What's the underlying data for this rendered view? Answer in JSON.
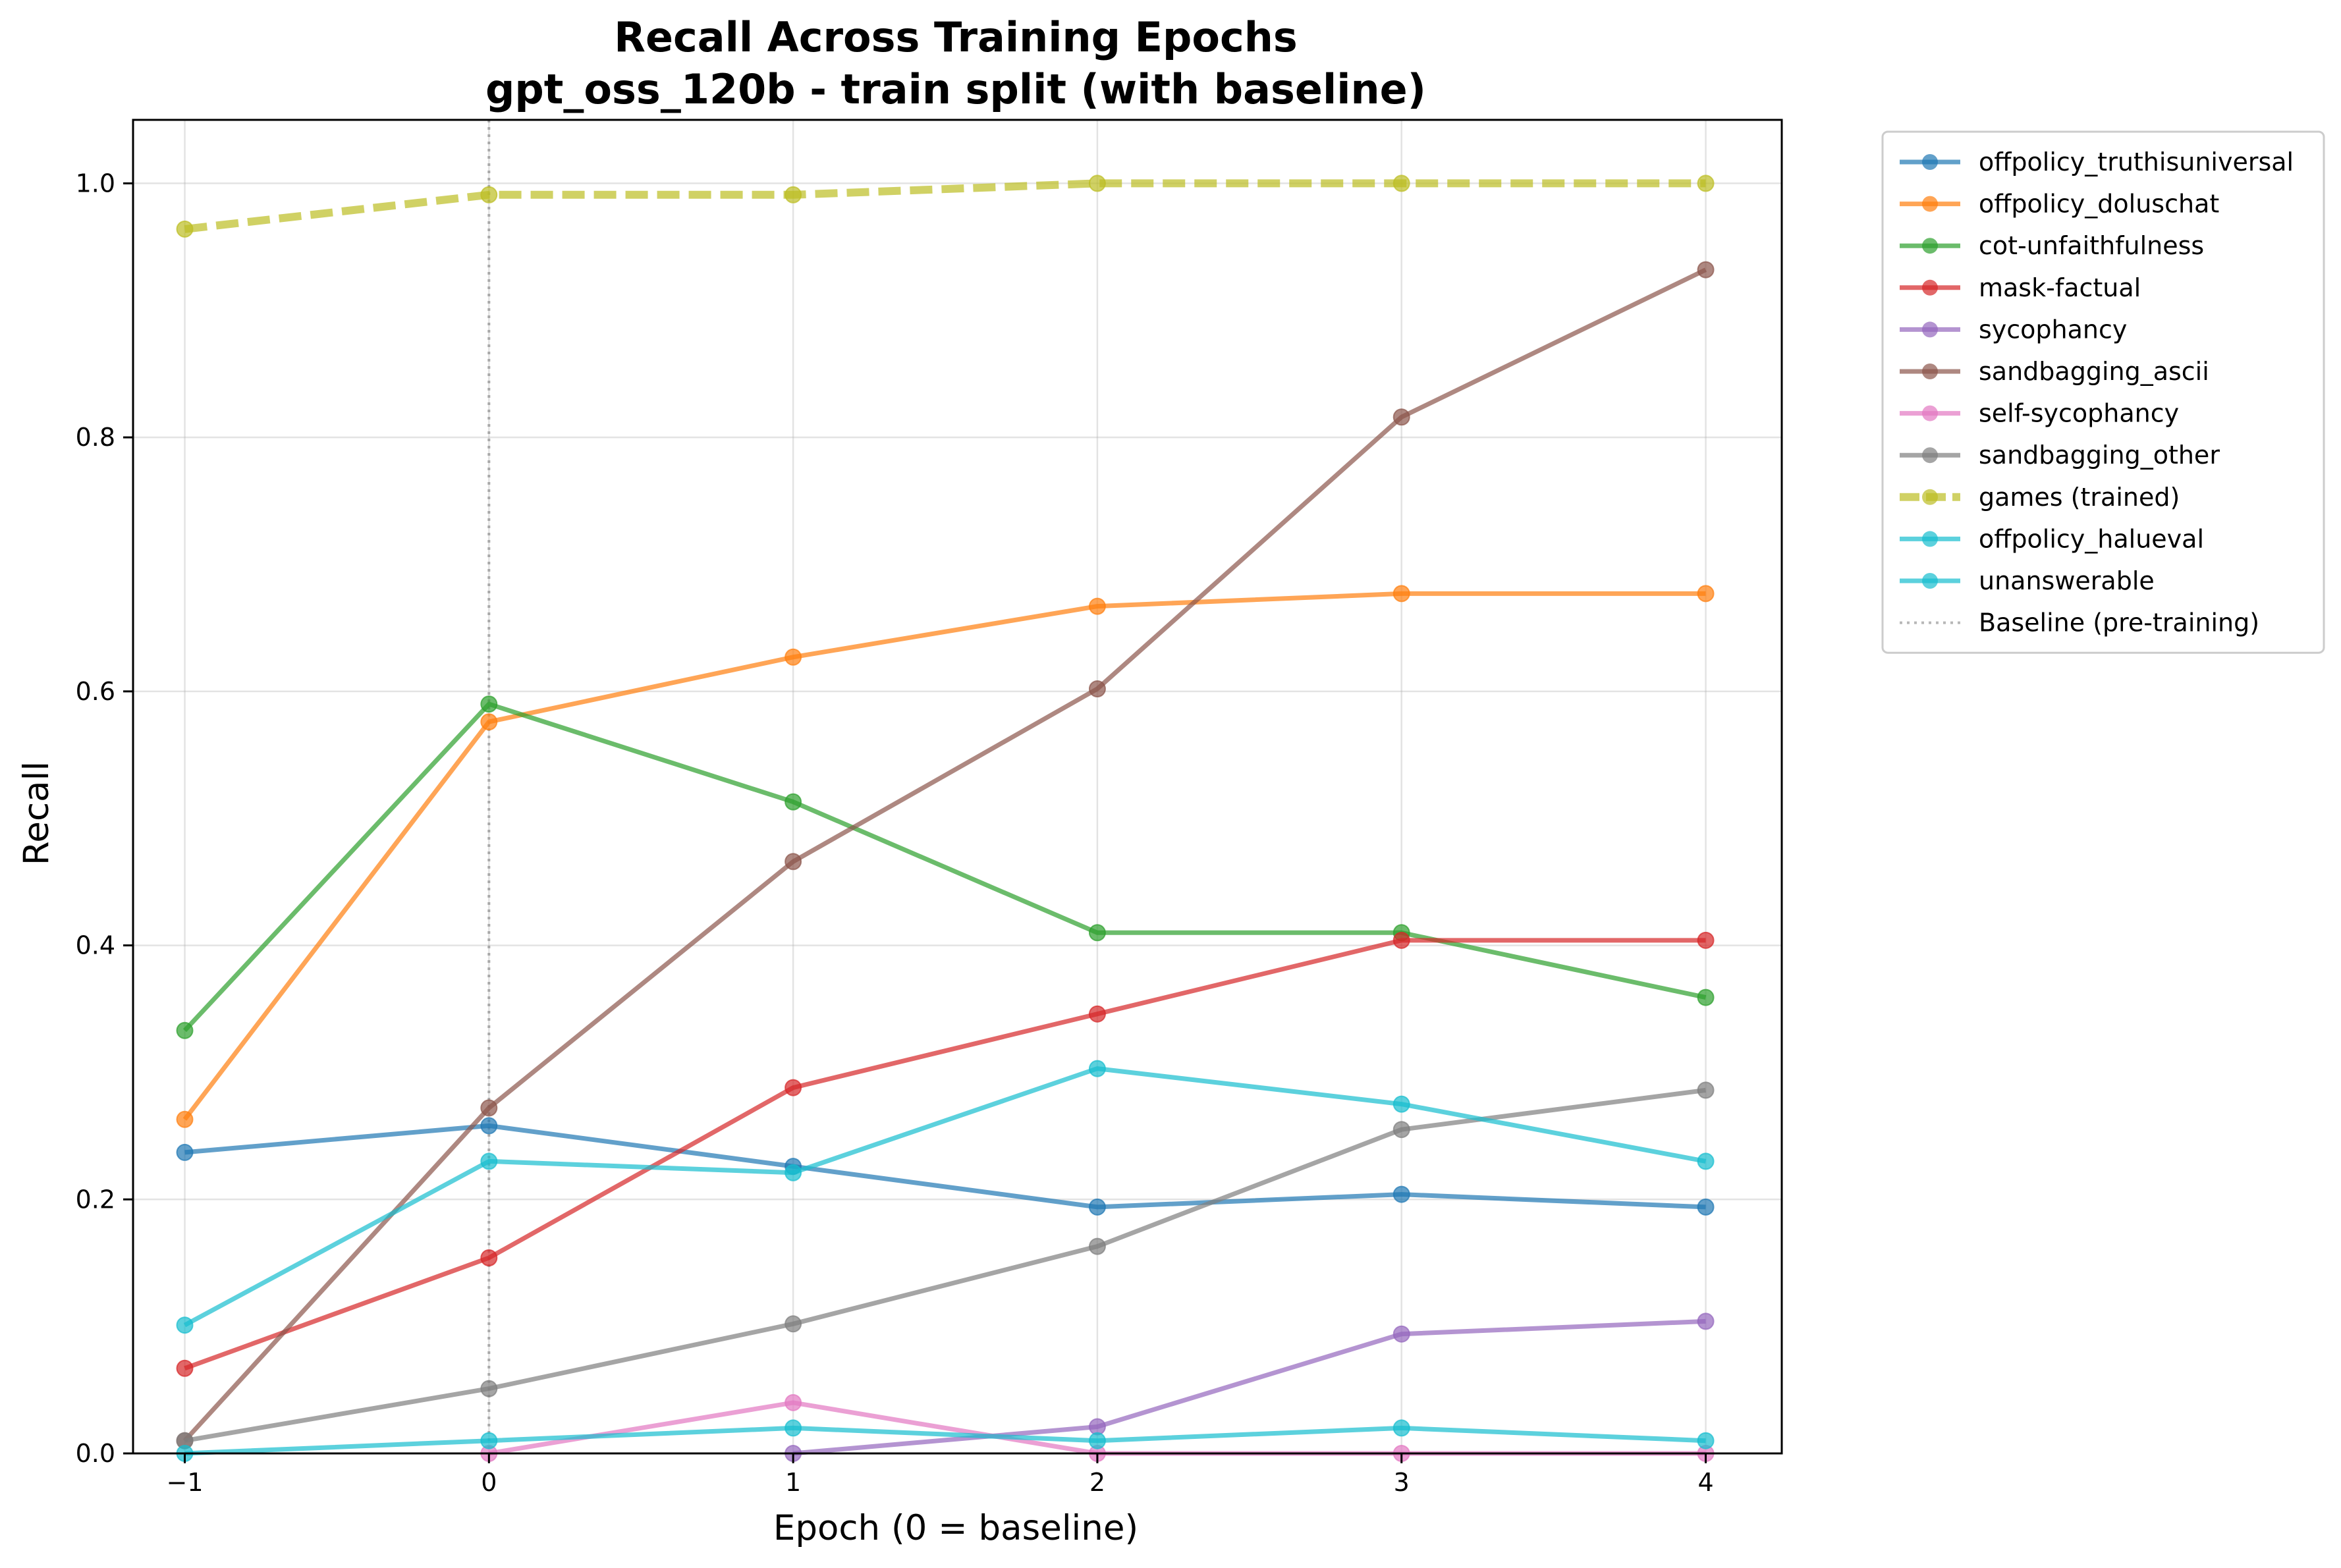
{
  "chart_data": {
    "type": "line",
    "title_lines": [
      "Recall Across Training Epochs",
      "gpt_oss_120b - train split (with baseline)"
    ],
    "xlabel": "Epoch (0 = baseline)",
    "ylabel": "Recall",
    "x": [
      -1,
      0,
      1,
      2,
      3,
      4
    ],
    "xticks": [
      -1,
      0,
      1,
      2,
      3,
      4
    ],
    "xtick_labels": [
      "−1",
      "0",
      "1",
      "2",
      "3",
      "4"
    ],
    "yticks": [
      0.0,
      0.2,
      0.4,
      0.6,
      0.8,
      1.0
    ],
    "ytick_labels": [
      "0.0",
      "0.2",
      "0.4",
      "0.6",
      "0.8",
      "1.0"
    ],
    "xlim": [
      -1.17,
      4.25
    ],
    "ylim": [
      0.0,
      1.05
    ],
    "grid": true,
    "legend_position": "outside-right-top",
    "series": [
      {
        "name": "offpolicy_truthisuniversal",
        "color": "#1f77b4",
        "values": [
          0.237,
          0.258,
          0.226,
          0.194,
          0.204,
          0.194
        ]
      },
      {
        "name": "offpolicy_doluschat",
        "color": "#ff7f0e",
        "values": [
          0.263,
          0.576,
          0.627,
          0.667,
          0.677,
          0.677
        ]
      },
      {
        "name": "cot-unfaithfulness",
        "color": "#2ca02c",
        "values": [
          0.333,
          0.59,
          0.513,
          0.41,
          0.41,
          0.359
        ]
      },
      {
        "name": "mask-factual",
        "color": "#d62728",
        "values": [
          0.067,
          0.154,
          0.288,
          0.346,
          0.404,
          0.404
        ]
      },
      {
        "name": "sycophancy",
        "color": "#9467bd",
        "values": [
          null,
          null,
          0.0,
          0.021,
          0.094,
          0.104
        ]
      },
      {
        "name": "sandbagging_ascii",
        "color": "#8c564b",
        "values": [
          0.01,
          0.272,
          0.466,
          0.602,
          0.816,
          0.932
        ]
      },
      {
        "name": "self-sycophancy",
        "color": "#e377c2",
        "values": [
          null,
          0.0,
          0.04,
          0.0,
          0.0,
          0.0
        ]
      },
      {
        "name": "sandbagging_other",
        "color": "#7f7f7f",
        "values": [
          0.01,
          0.051,
          0.102,
          0.163,
          0.255,
          0.286
        ]
      },
      {
        "name": "games (trained)",
        "color": "#bcbd22",
        "dashed": true,
        "values": [
          0.964,
          0.991,
          0.991,
          1.0,
          1.0,
          1.0
        ]
      },
      {
        "name": "offpolicy_halueval",
        "color": "#17becf",
        "values": [
          0.101,
          0.23,
          0.221,
          0.303,
          0.275,
          0.23
        ]
      },
      {
        "name": "unanswerable",
        "color": "#17becf",
        "values": [
          0.0,
          0.01,
          0.02,
          0.01,
          0.02,
          0.01
        ]
      }
    ],
    "baseline": {
      "name": "Baseline (pre-training)",
      "x": 0,
      "color": "#999999"
    }
  }
}
